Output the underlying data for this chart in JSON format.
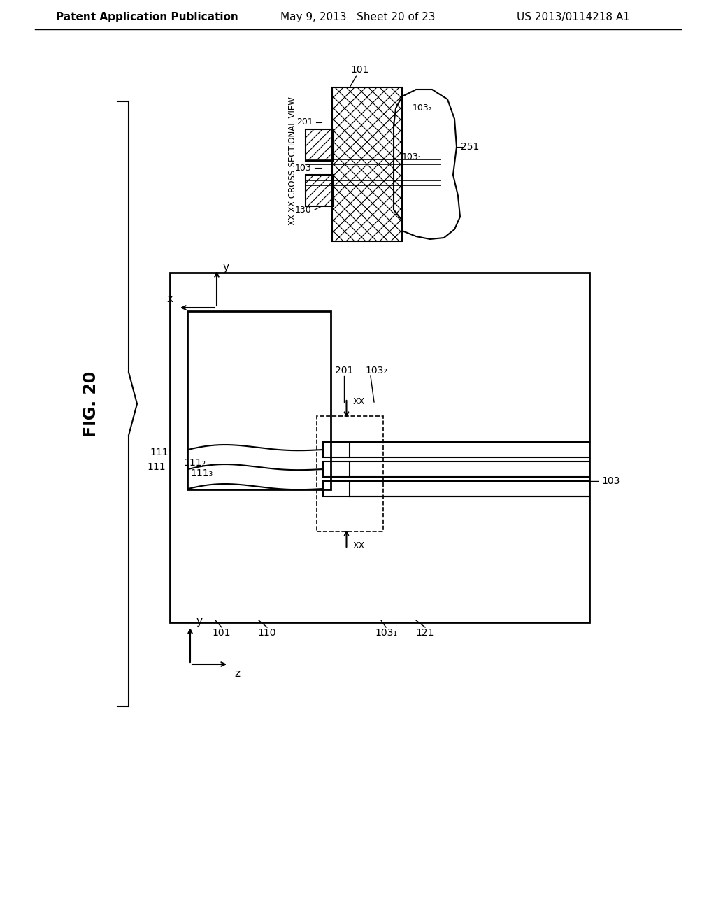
{
  "bg_color": "#ffffff",
  "line_color": "#000000",
  "header_left": "Patent Application Publication",
  "header_mid": "May 9, 2013   Sheet 20 of 23",
  "header_right": "US 2013/0114218 A1",
  "fig_label": "FIG. 20",
  "cross_section_label": "XX-XX CROSS-SECTIONAL VIEW"
}
